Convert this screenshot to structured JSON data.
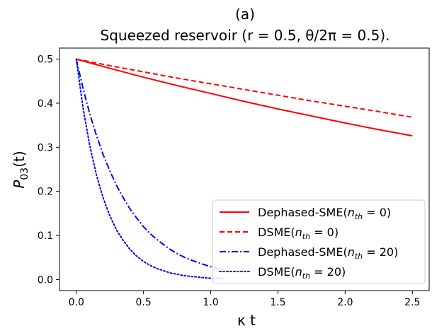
{
  "chart_data": {
    "type": "line",
    "title_line1": "(a)",
    "title_line2": "Squeezed reservoir  (r = 0.5,  θ/2π = 0.5).",
    "xlabel": "κ t",
    "ylabel": "P03(t)",
    "xlim": [
      -0.125,
      2.625
    ],
    "ylim": [
      -0.025,
      0.525
    ],
    "xticks": [
      0.0,
      0.5,
      1.0,
      1.5,
      2.0,
      2.5
    ],
    "xtick_labels": [
      "0.0",
      "0.5",
      "1.0",
      "1.5",
      "2.0",
      "2.5"
    ],
    "yticks": [
      0.0,
      0.1,
      0.2,
      0.3,
      0.4,
      0.5
    ],
    "ytick_labels": [
      "0.0",
      "0.1",
      "0.2",
      "0.3",
      "0.4",
      "0.5"
    ],
    "grid": false,
    "legend_position": "lower-right",
    "series": [
      {
        "name": "Dephased-SME(n_th = 0)",
        "color": "#ff0000",
        "style": "solid",
        "x": [
          0.0,
          0.25,
          0.5,
          0.75,
          1.0,
          1.25,
          1.5,
          1.75,
          2.0,
          2.25,
          2.5
        ],
        "y": [
          0.5,
          0.479,
          0.459,
          0.44,
          0.422,
          0.404,
          0.387,
          0.371,
          0.355,
          0.34,
          0.326
        ]
      },
      {
        "name": "DSME(n_th = 0)",
        "color": "#ff0000",
        "style": "dashed",
        "x": [
          0.0,
          0.25,
          0.5,
          0.75,
          1.0,
          1.25,
          1.5,
          1.75,
          2.0,
          2.25,
          2.5
        ],
        "y": [
          0.5,
          0.485,
          0.471,
          0.457,
          0.444,
          0.431,
          0.418,
          0.405,
          0.393,
          0.381,
          0.368
        ]
      },
      {
        "name": "Dephased-SME(n_th = 20)",
        "color": "#0000ff",
        "style": "dashdot",
        "x": [
          0.0,
          0.05,
          0.1,
          0.15,
          0.2,
          0.25,
          0.3,
          0.35,
          0.4,
          0.45,
          0.5,
          0.55,
          0.6,
          0.65,
          0.7,
          0.75,
          0.8,
          0.85,
          0.9,
          0.95,
          1.0,
          1.05,
          1.1
        ],
        "y": [
          0.5,
          0.434,
          0.376,
          0.327,
          0.283,
          0.246,
          0.213,
          0.185,
          0.16,
          0.139,
          0.12,
          0.104,
          0.091,
          0.079,
          0.068,
          0.059,
          0.051,
          0.045,
          0.039,
          0.034,
          0.029,
          0.025,
          0.022
        ]
      },
      {
        "name": "DSME(n_th = 20)",
        "color": "#0000ff",
        "style": "dotted",
        "x": [
          0.0,
          0.05,
          0.1,
          0.15,
          0.2,
          0.25,
          0.3,
          0.35,
          0.4,
          0.45,
          0.5,
          0.55,
          0.6,
          0.65,
          0.7,
          0.75,
          0.8,
          0.85,
          0.9,
          0.95,
          1.0,
          1.05,
          1.1
        ],
        "y": [
          0.5,
          0.39,
          0.304,
          0.237,
          0.185,
          0.144,
          0.112,
          0.088,
          0.068,
          0.053,
          0.041,
          0.032,
          0.025,
          0.02,
          0.015,
          0.012,
          0.009,
          0.007,
          0.006,
          0.004,
          0.003,
          0.003,
          0.002
        ]
      }
    ]
  }
}
